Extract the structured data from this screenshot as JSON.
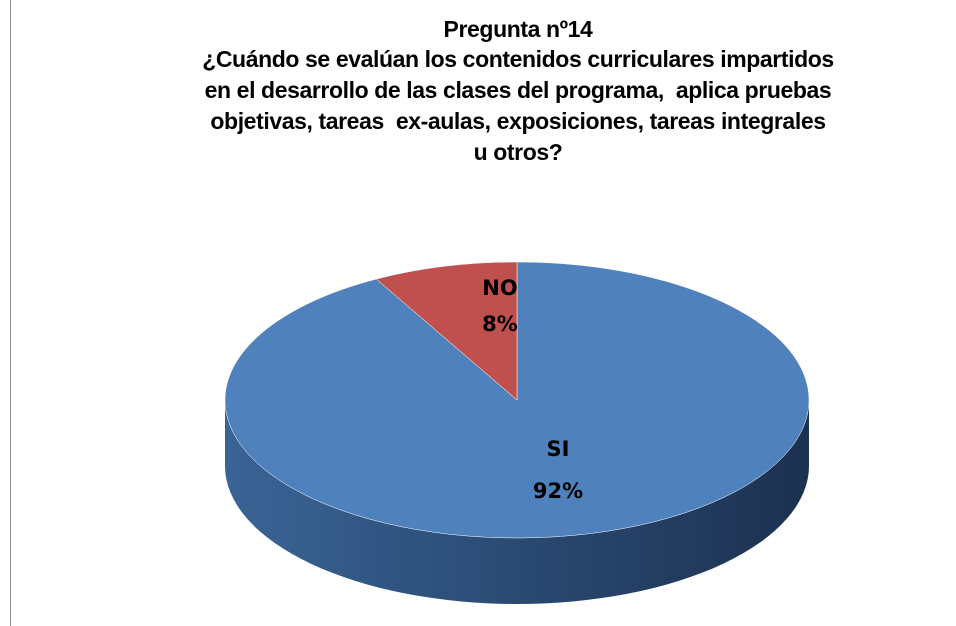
{
  "chart_data": {
    "type": "pie3d",
    "title": "Pregunta nº14",
    "subtitle": [
      "¿Cuándo se evalúan los contenidos curriculares impartidos",
      "en el desarrollo de las clases del programa,  aplica pruebas",
      "objetivas, tareas  ex-aulas, exposiciones, tareas integrales",
      "u otros?"
    ],
    "categories": [
      "SI",
      "NO"
    ],
    "values": [
      92,
      8
    ],
    "value_labels": [
      "92%",
      "8%"
    ],
    "colors": [
      "#4f81bd",
      "#c0504d"
    ]
  }
}
